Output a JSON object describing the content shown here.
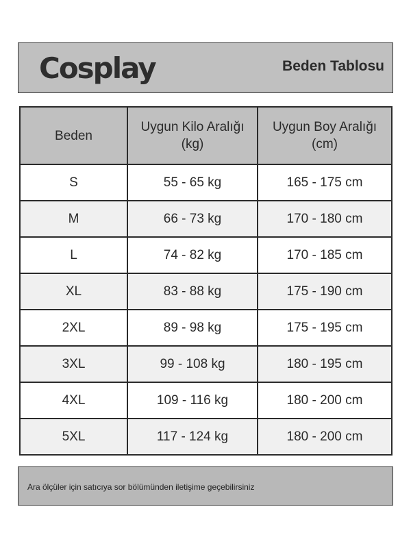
{
  "header": {
    "logo": "Cosplay",
    "title": "Beden Tablosu"
  },
  "table": {
    "columns": [
      "Beden",
      "Uygun Kilo Aralığı (kg)",
      "Uygun Boy Aralığı (cm)"
    ],
    "rows": [
      [
        "S",
        "55 - 65 kg",
        "165 - 175 cm"
      ],
      [
        "M",
        "66 - 73 kg",
        "170 - 180 cm"
      ],
      [
        "L",
        "74 - 82 kg",
        "170 - 185 cm"
      ],
      [
        "XL",
        "83 - 88 kg",
        "175 - 190 cm"
      ],
      [
        "2XL",
        "89 - 98 kg",
        "175 - 195 cm"
      ],
      [
        "3XL",
        "99 - 108 kg",
        "180 - 195 cm"
      ],
      [
        "4XL",
        "109 - 116 kg",
        "180 - 200 cm"
      ],
      [
        "5XL",
        "117 - 124 kg",
        "180 - 200 cm"
      ]
    ]
  },
  "footer": {
    "note": "Ara ölçüler için satıcıya sor bölümünden iletişime geçebilirsiniz"
  },
  "colors": {
    "header_bg": "#c0c0c0",
    "alt_row": "#f0f0f0",
    "border": "#2b2b2b"
  }
}
